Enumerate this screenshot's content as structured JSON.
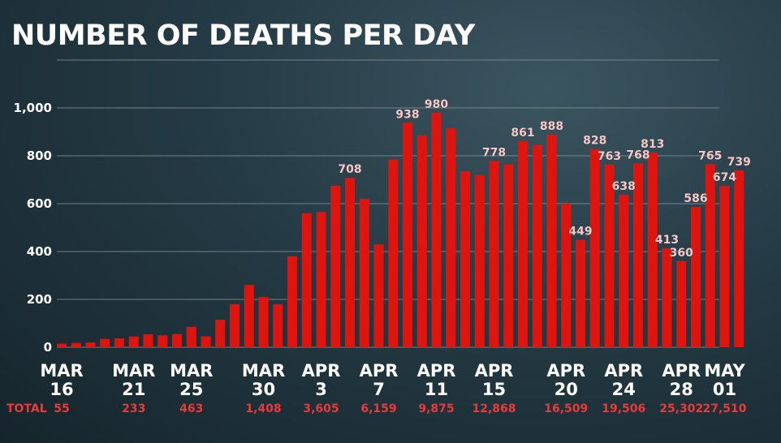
{
  "chart_data": {
    "type": "bar",
    "title": "NUMBER OF DEATHS PER DAY",
    "xlabel": "",
    "ylabel": "",
    "ylim": [
      0,
      1200
    ],
    "yticks": [
      "0",
      "200",
      "400",
      "600",
      "800",
      "1,000"
    ],
    "grid": true,
    "colors": {
      "bar": "#e0140f",
      "background": "#1e2f38",
      "label": "#f4c9c9",
      "total": "#e83a3a"
    },
    "values": [
      15,
      18,
      20,
      35,
      37,
      45,
      54,
      50,
      55,
      85,
      46,
      115,
      180,
      260,
      210,
      180,
      380,
      560,
      565,
      675,
      708,
      620,
      430,
      785,
      938,
      885,
      980,
      915,
      735,
      720,
      778,
      765,
      861,
      845,
      888,
      600,
      449,
      828,
      763,
      638,
      768,
      813,
      413,
      360,
      586,
      765,
      674,
      739
    ],
    "data_labels": [
      {
        "index": 20,
        "text": "708"
      },
      {
        "index": 24,
        "text": "938"
      },
      {
        "index": 26,
        "text": "980"
      },
      {
        "index": 30,
        "text": "778"
      },
      {
        "index": 32,
        "text": "861"
      },
      {
        "index": 34,
        "text": "888"
      },
      {
        "index": 36,
        "text": "449"
      },
      {
        "index": 37,
        "text": "828"
      },
      {
        "index": 38,
        "text": "763"
      },
      {
        "index": 39,
        "text": "638"
      },
      {
        "index": 40,
        "text": "768"
      },
      {
        "index": 41,
        "text": "813"
      },
      {
        "index": 42,
        "text": "413"
      },
      {
        "index": 43,
        "text": "360"
      },
      {
        "index": 44,
        "text": "586"
      },
      {
        "index": 45,
        "text": "765"
      },
      {
        "index": 46,
        "text": "674"
      },
      {
        "index": 47,
        "text": "739"
      }
    ],
    "x_ticks": [
      {
        "index": 0,
        "top": "MAR",
        "bottom": "16"
      },
      {
        "index": 5,
        "top": "MAR",
        "bottom": "21"
      },
      {
        "index": 9,
        "top": "MAR",
        "bottom": "25"
      },
      {
        "index": 14,
        "top": "MAR",
        "bottom": "30"
      },
      {
        "index": 18,
        "top": "APR",
        "bottom": "3"
      },
      {
        "index": 22,
        "top": "APR",
        "bottom": "7"
      },
      {
        "index": 26,
        "top": "APR",
        "bottom": "11"
      },
      {
        "index": 30,
        "top": "APR",
        "bottom": "15"
      },
      {
        "index": 35,
        "top": "APR",
        "bottom": "20"
      },
      {
        "index": 39,
        "top": "APR",
        "bottom": "24"
      },
      {
        "index": 43,
        "top": "APR",
        "bottom": "28"
      },
      {
        "index": 46,
        "top": "MAY",
        "bottom": "01"
      }
    ],
    "totals_label": "TOTAL",
    "totals": [
      {
        "index": 0,
        "text": "55"
      },
      {
        "index": 5,
        "text": "233"
      },
      {
        "index": 9,
        "text": "463"
      },
      {
        "index": 14,
        "text": "1,408"
      },
      {
        "index": 18,
        "text": "3,605"
      },
      {
        "index": 22,
        "text": "6,159"
      },
      {
        "index": 26,
        "text": "9,875"
      },
      {
        "index": 30,
        "text": "12,868"
      },
      {
        "index": 35,
        "text": "16,509"
      },
      {
        "index": 39,
        "text": "19,506"
      },
      {
        "index": 43,
        "text": "25,302"
      },
      {
        "index": 46,
        "text": "27,510"
      }
    ]
  }
}
